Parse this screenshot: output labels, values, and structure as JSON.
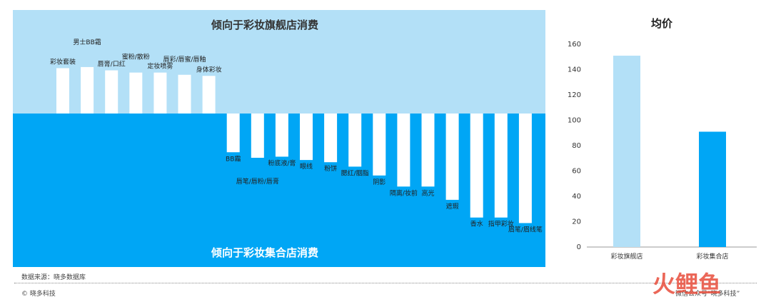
{
  "chart_data": [
    {
      "type": "bar",
      "title_top": "倾向于彩妆旗舰店消费",
      "title_bottom": "倾向于彩妆集合店消费",
      "colors": {
        "top_bg": "#b3e0f7",
        "bottom_bg": "#00a6f5",
        "bar": "#ffffff"
      },
      "categories": [
        "彩妆套装",
        "男士BB霜",
        "唇膏/口红",
        "蜜粉/散粉",
        "定妆喷雾",
        "唇彩/唇蜜/唇釉",
        "身体彩妆",
        "BB霜",
        "唇笔/唇粉/唇膏",
        "粉底液/膏",
        "眼线",
        "粉饼",
        "腮红/胭脂",
        "阴影",
        "隔离/妆前",
        "高光",
        "遮瑕",
        "香水",
        "指甲彩妆",
        "眉笔/眉线笔"
      ],
      "values": [
        0.41,
        0.42,
        0.39,
        0.37,
        0.37,
        0.35,
        0.34,
        -0.35,
        -0.4,
        -0.39,
        -0.42,
        -0.44,
        -0.48,
        -0.56,
        -0.66,
        -0.66,
        -0.78,
        -0.94,
        -0.94,
        -0.99
      ]
    },
    {
      "type": "bar",
      "title": "均价",
      "categories": [
        "彩妆旗舰店",
        "彩妆集合店"
      ],
      "values": [
        151,
        91
      ],
      "colors": [
        "#b3e0f7",
        "#00a6f5"
      ],
      "ylim": [
        0,
        160
      ],
      "yticks": [
        0,
        20,
        40,
        60,
        80,
        100,
        120,
        140,
        160
      ]
    }
  ],
  "footer": {
    "source": "数据来源：晓多数据库",
    "copyright": "© 晓多科技",
    "wechat": "微信公众号“晓多科技”"
  },
  "watermark": {
    "text": "火鲤鱼",
    "color": "#e84d3c"
  }
}
